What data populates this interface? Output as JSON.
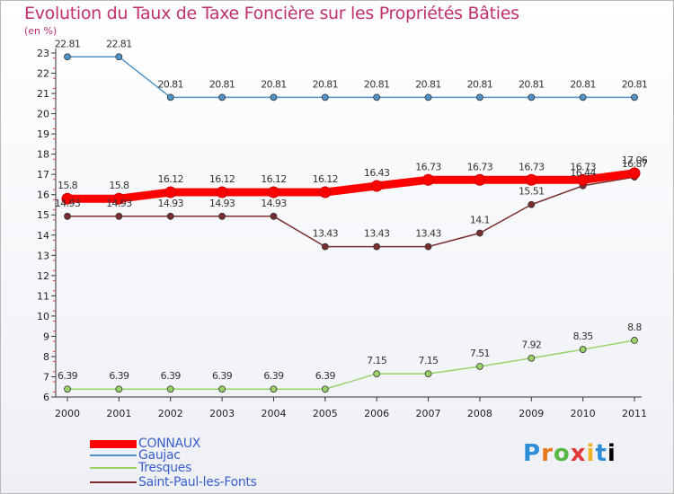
{
  "chart_data": {
    "type": "line",
    "title": "Evolution du Taux de Taxe Foncière sur les Propriétés Bâties",
    "unit_label": "(en %)",
    "x": [
      "2000",
      "2001",
      "2002",
      "2003",
      "2004",
      "2005",
      "2006",
      "2007",
      "2008",
      "2009",
      "2010",
      "2011"
    ],
    "ylim": [
      6,
      23
    ],
    "yticks": [
      6,
      7,
      8,
      9,
      10,
      11,
      12,
      13,
      14,
      15,
      16,
      17,
      18,
      19,
      20,
      21,
      22,
      23
    ],
    "grid": false,
    "legend_position": "bottom-left",
    "series": [
      {
        "name": "CONNAUX",
        "color": "#ff0000",
        "values": [
          15.8,
          15.8,
          16.12,
          16.12,
          16.12,
          16.12,
          16.43,
          16.73,
          16.73,
          16.73,
          16.73,
          17.06
        ],
        "labels": [
          "15.8",
          "15.8",
          "16.12",
          "16.12",
          "16.12",
          "16.12",
          "16.43",
          "16.73",
          "16.73",
          "16.73",
          "16.73",
          "17.06"
        ]
      },
      {
        "name": "Gaujac",
        "color": "#4f93c9",
        "values": [
          22.81,
          22.81,
          20.81,
          20.81,
          20.81,
          20.81,
          20.81,
          20.81,
          20.81,
          20.81,
          20.81,
          20.81
        ],
        "labels": [
          "22.81",
          "22.81",
          "20.81",
          "20.81",
          "20.81",
          "20.81",
          "20.81",
          "20.81",
          "20.81",
          "20.81",
          "20.81",
          "20.81"
        ]
      },
      {
        "name": "Tresques",
        "color": "#9ad26a",
        "values": [
          6.39,
          6.39,
          6.39,
          6.39,
          6.39,
          6.39,
          7.15,
          7.15,
          7.51,
          7.92,
          8.35,
          8.8
        ],
        "labels": [
          "6.39",
          "6.39",
          "6.39",
          "6.39",
          "6.39",
          "6.39",
          "7.15",
          "7.15",
          "7.51",
          "7.92",
          "8.35",
          "8.8"
        ]
      },
      {
        "name": "Saint-Paul-les-Fonts",
        "color": "#7a2e2e",
        "values": [
          14.93,
          14.93,
          14.93,
          14.93,
          14.93,
          13.43,
          13.43,
          13.43,
          14.1,
          15.51,
          16.44,
          16.87
        ],
        "labels": [
          "14.93",
          "14.93",
          "14.93",
          "14.93",
          "14.93",
          "13.43",
          "13.43",
          "13.43",
          "14.1",
          "15.51",
          "16.44",
          "16.87"
        ]
      }
    ]
  },
  "logo": {
    "letters": [
      "P",
      "r",
      "o",
      "x",
      "i",
      "t",
      "i"
    ]
  }
}
